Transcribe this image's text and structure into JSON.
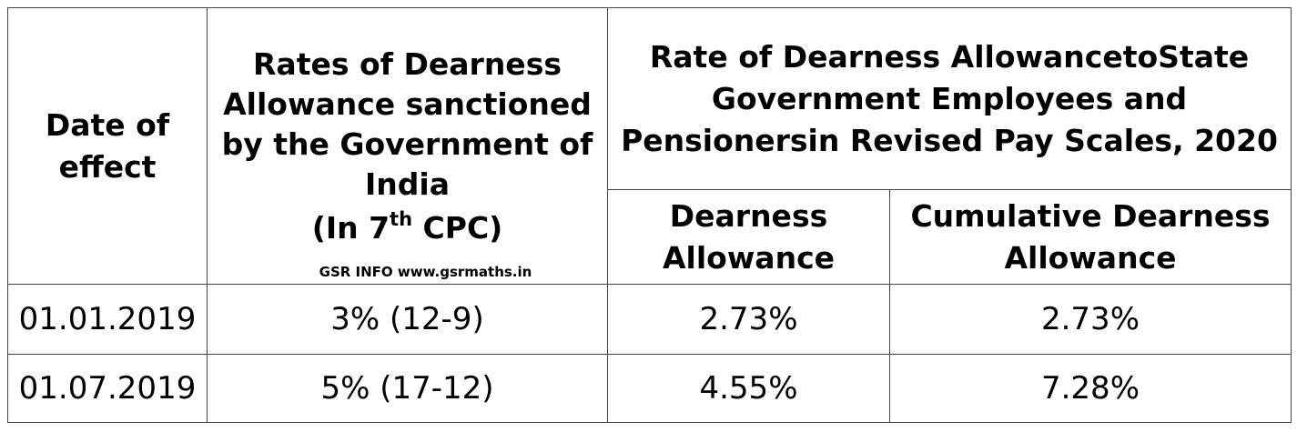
{
  "table": {
    "header": {
      "date_of_effect": "Date of effect",
      "rates_sanctioned": "Rates of Dearness Allowance sanctioned by the Government of India",
      "cpc_prefix": "(In 7",
      "cpc_sup": "th",
      "cpc_suffix": " CPC)",
      "watermark": "GSR INFO www.gsrmaths.in",
      "state_rate": "Rate of Dearness AllowancetoState Government Employees and Pensionersin Revised Pay Scales, 2020",
      "dearness_allowance": "Dearness Allowance",
      "cumulative_dearness_allowance": "Cumulative Dearness Allowance"
    },
    "rows": [
      {
        "date": "01.01.2019",
        "goi_rate": "3% (12-9)",
        "da": "2.73%",
        "cumulative": "2.73%"
      },
      {
        "date": "01.07.2019",
        "goi_rate": "5% (17-12)",
        "da": "4.55%",
        "cumulative": "7.28%"
      }
    ]
  }
}
